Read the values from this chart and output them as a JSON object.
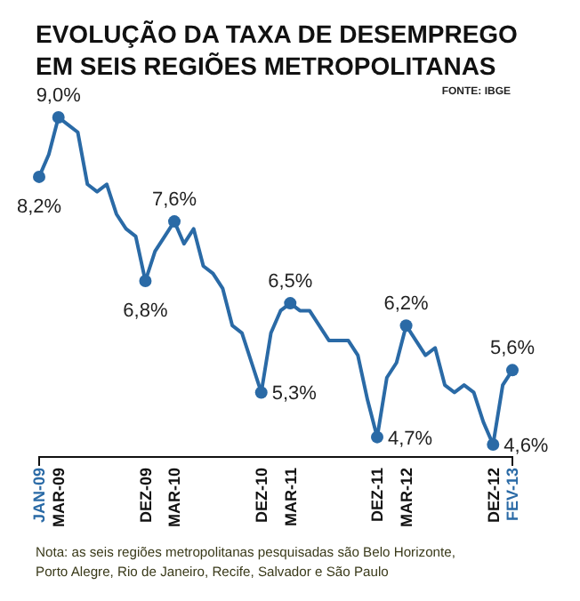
{
  "chart_data": {
    "type": "line",
    "title": "EVOLUÇÃO DA TAXA DE DESEMPREGO\nEM SEIS REGIÕES METROPOLITANAS",
    "annotations": [
      "FONTE: IBGE",
      "Nota: as seis regiões metropolitanas pesquisadas são Belo Horizonte,\nPorto Alegre, Rio de Janeiro, Recife, Salvador e São Paulo"
    ],
    "categories": [
      "JAN-09",
      null,
      "MAR-09",
      null,
      null,
      null,
      null,
      null,
      null,
      null,
      null,
      "DEZ-09",
      null,
      null,
      "MAR-10",
      null,
      null,
      null,
      null,
      null,
      null,
      null,
      null,
      "DEZ-10",
      null,
      null,
      "MAR-11",
      null,
      null,
      null,
      null,
      null,
      null,
      null,
      null,
      "DEZ-11",
      null,
      null,
      "MAR-12",
      null,
      null,
      null,
      null,
      null,
      null,
      null,
      null,
      "DEZ-12",
      null,
      "FEV-13"
    ],
    "series": [
      {
        "color": "#2a6aa6",
        "values": [
          8.2,
          8.5,
          9.0,
          8.9,
          8.8,
          8.1,
          8.0,
          8.1,
          7.7,
          7.5,
          7.4,
          6.8,
          7.2,
          7.4,
          7.6,
          7.3,
          7.5,
          7.0,
          6.9,
          6.7,
          6.2,
          6.1,
          5.7,
          5.3,
          6.1,
          6.4,
          6.5,
          6.4,
          6.4,
          6.2,
          6.0,
          6.0,
          6.0,
          5.8,
          5.2,
          4.7,
          5.5,
          5.7,
          6.2,
          6.0,
          5.8,
          5.9,
          5.4,
          5.3,
          5.4,
          5.3,
          4.9,
          4.6,
          5.4,
          5.6
        ],
        "value_labels": [
          "8,2%",
          null,
          "9,0%",
          null,
          null,
          null,
          null,
          null,
          null,
          null,
          null,
          "6,8%",
          null,
          null,
          "7,6%",
          null,
          null,
          null,
          null,
          null,
          null,
          null,
          null,
          "5,3%",
          null,
          null,
          "6,5%",
          null,
          null,
          null,
          null,
          null,
          null,
          null,
          null,
          "4,7%",
          null,
          null,
          "6,2%",
          null,
          null,
          null,
          null,
          null,
          null,
          null,
          null,
          "4,6%",
          null,
          "5,6%"
        ]
      }
    ],
    "line_style": "solid"
  }
}
